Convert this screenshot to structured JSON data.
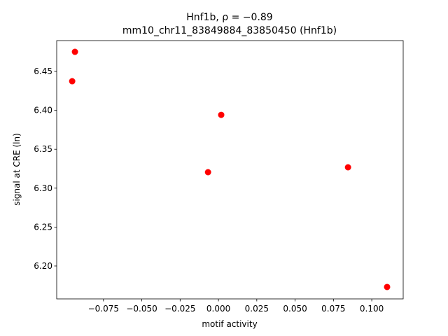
{
  "chart_data": {
    "type": "scatter",
    "title": "Hnf1b, ρ = −0.89",
    "subtitle": "mm10_chr11_83849884_83850450 (Hnf1b)",
    "x_label": "motif activity",
    "y_label": "signal at CRE (ln)",
    "color": "#ff0000",
    "x": [
      -0.0936,
      -0.0954,
      0.0018,
      -0.0068,
      0.0845,
      0.11
    ],
    "values": [
      6.4752,
      6.4374,
      6.3942,
      6.3205,
      6.3268,
      6.173
    ],
    "xlim": [
      -0.1055,
      0.1205
    ],
    "ylim": [
      6.1577,
      6.4896
    ],
    "xticks": [
      {
        "value": -0.075,
        "label": "−0.075"
      },
      {
        "value": -0.05,
        "label": "−0.050"
      },
      {
        "value": -0.025,
        "label": "−0.025"
      },
      {
        "value": 0,
        "label": "0.000"
      },
      0.025,
      {
        "value": 0.05,
        "label": "0.050"
      },
      0.075,
      {
        "value": 0.1,
        "label": "0.100"
      }
    ],
    "yticks": [
      {
        "value": 6.2,
        "label": "6.20"
      },
      6.25,
      {
        "value": 6.3,
        "label": "6.30"
      },
      6.35,
      {
        "value": 6.4,
        "label": "6.40"
      },
      6.45
    ]
  }
}
